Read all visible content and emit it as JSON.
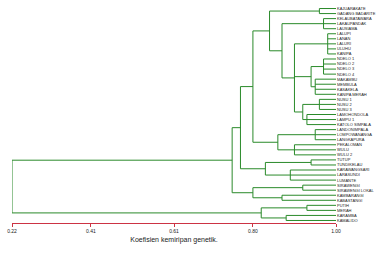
{
  "chart_data": {
    "type": "dendrogram",
    "x_label": "Koefisien kemiripan genetik.",
    "xlim": [
      0.22,
      1.0
    ],
    "xticks": [
      0.22,
      0.41,
      0.61,
      {
        "value": 0.8,
        "label": "0.80"
      },
      {
        "value": 1.0,
        "label": "1.00"
      }
    ],
    "grid": false,
    "color": "#2a8a2a",
    "tree": {
      "height": 0.22,
      "children": [
        {
          "height": 0.75,
          "children": [
            {
              "height": 0.77,
              "children": [
                {
                  "height": 0.8,
                  "children": [
                    {
                      "height": 0.84,
                      "children": [
                        {
                          "height": 0.96,
                          "children": [
                            "KAJUARAKATE",
                            "GADANG BADARITE"
                          ]
                        },
                        {
                          "height": 0.87,
                          "children": [
                            {
                              "height": 0.97,
                              "children": [
                                "KELAUBATAWARA",
                                "LAKAUPANDAK",
                                "LAUSIAMA"
                              ]
                            },
                            {
                              "height": 0.9,
                              "children": [
                                {
                                  "height": 0.98,
                                  "children": [
                                    "LALUPI",
                                    "LANAN",
                                    "LALURI",
                                    "ULUHU",
                                    "KANIPA"
                                  ]
                                },
                                {
                                  "height": 0.94,
                                  "children": [
                                    {
                                      "height": 0.97,
                                      "children": [
                                        "NDELO 1",
                                        "NDELO 2",
                                        "NDELO 3",
                                        "NDELO 4"
                                      ]
                                    },
                                    {
                                      "height": 0.95,
                                      "children": [
                                        "MAKAMBU",
                                        "MEMBULA",
                                        "KASAKELA",
                                        "KANIPA MERAH"
                                      ]
                                    }
                                  ]
                                },
                                {
                                  "height": 0.92,
                                  "children": [
                                    {
                                      "height": 0.96,
                                      "children": [
                                        "NUSU 1",
                                        "NUSU 2",
                                        "NUSU 3"
                                      ]
                                    },
                                    {
                                      "height": 0.93,
                                      "children": [
                                        "LAMOHONDOLA",
                                        "LAMPU 1",
                                        "KATOLO SIMPALA"
                                      ]
                                    }
                                  ]
                                }
                              ]
                            }
                          ]
                        }
                      ]
                    },
                    {
                      "height": 0.86,
                      "children": [
                        {
                          "height": 0.95,
                          "children": [
                            "LANDONIMPALA",
                            "LOMPOWANANGA",
                            "LANGKAPURA"
                          ]
                        },
                        {
                          "height": 0.9,
                          "children": [
                            "PEKALOMAN",
                            "WULU",
                            "WULU 2"
                          ]
                        }
                      ]
                    }
                  ]
                },
                {
                  "height": 0.83,
                  "children": [
                    {
                      "height": 0.94,
                      "children": [
                        "TUTUP",
                        "TUNDIKELAU"
                      ]
                    },
                    {
                      "height": 0.89,
                      "children": [
                        "KARAWANGSARI",
                        "LARASUNDI",
                        "LUMANTE"
                      ]
                    }
                  ]
                }
              ]
            },
            {
              "height": 0.8,
              "children": [
                {
                  "height": 0.92,
                  "children": [
                    "SIRAWENGI",
                    "SIRAWENGI LOKAL"
                  ]
                },
                {
                  "height": 0.87,
                  "children": [
                    "KAMBARANGI",
                    "KABASTANGI"
                  ]
                }
              ]
            }
          ]
        },
        {
          "height": 0.82,
          "children": [
            {
              "height": 0.93,
              "children": [
                "PUTIH",
                "MERAH"
              ]
            },
            {
              "height": 0.88,
              "children": [
                "KARAMBA",
                "KAMALIDO"
              ]
            }
          ]
        }
      ]
    }
  }
}
